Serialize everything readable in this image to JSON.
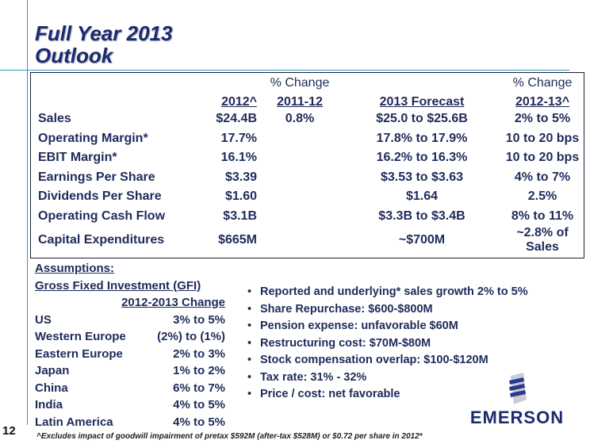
{
  "slide": {
    "title_line1": "Full Year 2013",
    "title_line2": "Outlook",
    "page_number": "12",
    "footnote": "^Excludes impact of goodwill impairment of pretax $592M (after-tax $528M) or $0.72 per share in 2012*"
  },
  "table": {
    "header_top": {
      "chg1": "% Change",
      "chg2": "% Change"
    },
    "header": {
      "y2012": "2012^",
      "chg1": "2011-12",
      "forecast": "2013 Forecast",
      "chg2": "2012-13^"
    },
    "rows": [
      {
        "label": "Sales",
        "y2012": "$24.4B",
        "chg1": "0.8%",
        "forecast": "$25.0 to $25.6B",
        "chg2": "2% to 5%"
      },
      {
        "label": "Operating Margin*",
        "y2012": "17.7%",
        "chg1": "",
        "forecast": "17.8% to 17.9%",
        "chg2": "10 to 20 bps"
      },
      {
        "label": "EBIT Margin*",
        "y2012": "16.1%",
        "chg1": "",
        "forecast": "16.2% to 16.3%",
        "chg2": "10 to 20 bps"
      },
      {
        "label": "Earnings Per Share",
        "y2012": "$3.39",
        "chg1": "",
        "forecast": "$3.53 to $3.63",
        "chg2": "4% to 7%"
      },
      {
        "label": "Dividends Per Share",
        "y2012": "$1.60",
        "chg1": "",
        "forecast": "$1.64",
        "chg2": "2.5%"
      },
      {
        "label": "Operating Cash Flow",
        "y2012": "$3.1B",
        "chg1": "",
        "forecast": "$3.3B to $3.4B",
        "chg2": "8% to 11%"
      },
      {
        "label": "Capital Expenditures",
        "y2012": "$665M",
        "chg1": "",
        "forecast": "~$700M",
        "chg2": "~2.8% of Sales"
      }
    ]
  },
  "assumptions": {
    "heading": "Assumptions:",
    "gfi_heading": "Gross Fixed Investment (GFI)",
    "gfi_col": "2012-2013 Change",
    "gfi_rows": [
      {
        "region": "US",
        "value": "3% to 5%"
      },
      {
        "region": "Western Europe",
        "value": "(2%) to (1%)"
      },
      {
        "region": "Eastern Europe",
        "value": "2% to 3%"
      },
      {
        "region": "Japan",
        "value": "1% to 2%"
      },
      {
        "region": "China",
        "value": "6% to 7%"
      },
      {
        "region": "India",
        "value": "4% to 5%"
      },
      {
        "region": "Latin America",
        "value": "4% to 5%"
      }
    ],
    "bullets": [
      "Reported and underlying* sales growth 2% to 5%",
      "Share Repurchase: $600-$800M",
      "Pension expense: unfavorable $60M",
      "Restructuring cost: $70M-$80M",
      "Stock compensation overlap: $100-$120M",
      "Tax rate: 31% - 32%",
      "Price / cost: net favorable"
    ]
  },
  "logo": {
    "text": "EMERSON",
    "icon": "emerson-logo-icon"
  },
  "colors": {
    "title": "#1c2a6e",
    "text": "#1f2a5a",
    "accent_line": "#2a9bbd"
  }
}
